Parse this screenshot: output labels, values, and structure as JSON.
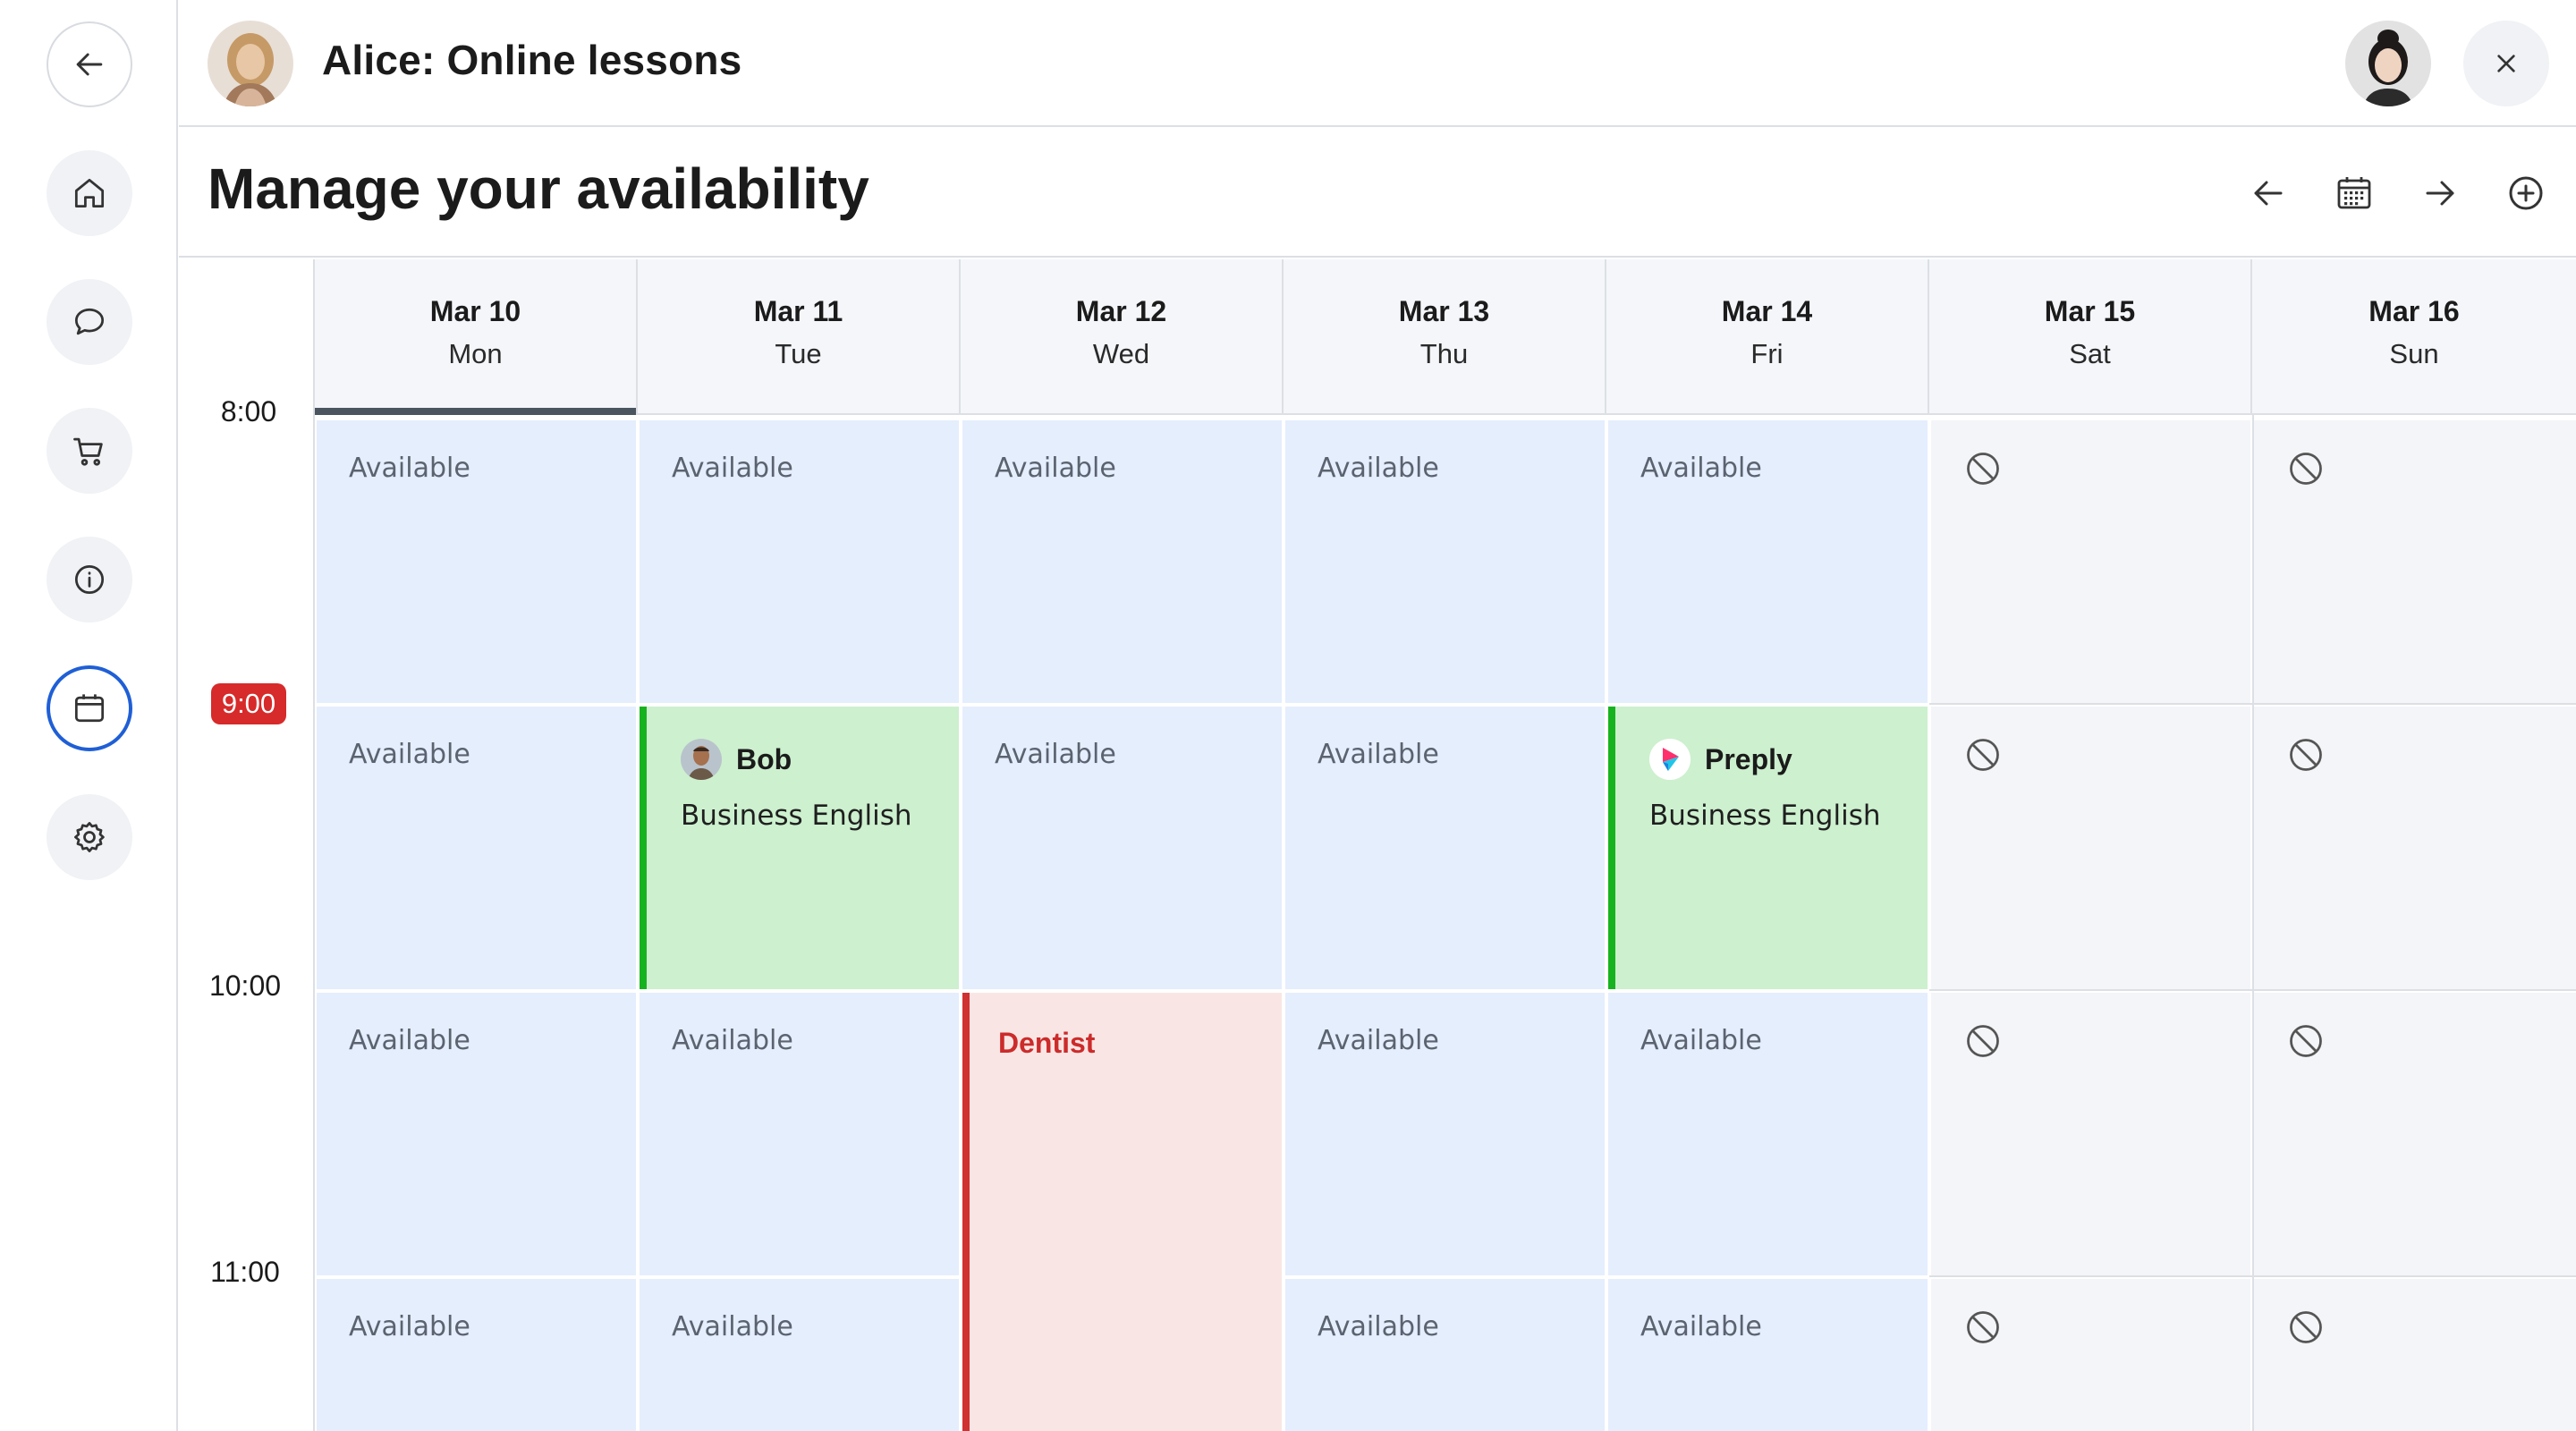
{
  "header": {
    "title": "Alice: Online lessons",
    "owner_avatar": "woman-avatar",
    "user_avatar": "user-avatar"
  },
  "rail": {
    "items": [
      {
        "name": "back",
        "icon": "arrow-left-icon"
      },
      {
        "name": "home",
        "icon": "home-icon"
      },
      {
        "name": "chat",
        "icon": "chat-icon"
      },
      {
        "name": "cart",
        "icon": "cart-icon"
      },
      {
        "name": "info",
        "icon": "info-icon"
      },
      {
        "name": "calendar",
        "icon": "calendar-icon",
        "active": true
      },
      {
        "name": "settings",
        "icon": "gear-icon"
      }
    ]
  },
  "page": {
    "title": "Manage your availability",
    "tools": [
      "arrow-left-icon",
      "calendar-grid-icon",
      "arrow-right-icon",
      "plus-circle-icon"
    ]
  },
  "calendar": {
    "days": [
      {
        "date": "Mar 10",
        "name": "Mon",
        "today": true
      },
      {
        "date": "Mar 11",
        "name": "Tue"
      },
      {
        "date": "Mar 12",
        "name": "Wed"
      },
      {
        "date": "Mar 13",
        "name": "Thu"
      },
      {
        "date": "Mar 14",
        "name": "Fri"
      },
      {
        "date": "Mar 15",
        "name": "Sat"
      },
      {
        "date": "Mar 16",
        "name": "Sun"
      }
    ],
    "times": [
      "8:00",
      "9:00",
      "10:00",
      "11:00"
    ],
    "current_time": "9:00",
    "available_label": "Available",
    "lessons": [
      {
        "day": "Mar 11",
        "time": "9:00",
        "student": "Bob",
        "topic": "Business English"
      },
      {
        "day": "Mar 14",
        "time": "9:00",
        "student": "Preply",
        "topic": "Business English"
      }
    ],
    "busy": [
      {
        "day": "Mar 12",
        "from": "10:00",
        "title": "Dentist"
      }
    ]
  },
  "colors": {
    "available": "#e5eefd",
    "blocked": "#f4f5f8",
    "lesson": "#cdf0cf",
    "lesson_border": "#17b21f",
    "busy": "#f9e6e4",
    "busy_border": "#d03131",
    "now": "#d72a2a",
    "active": "#1f5fd6"
  }
}
